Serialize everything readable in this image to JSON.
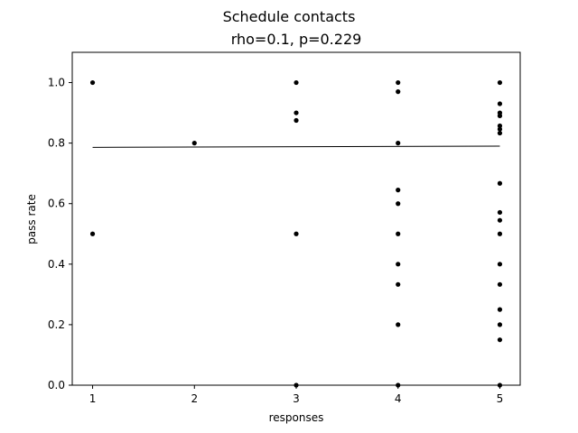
{
  "chart_data": {
    "type": "scatter",
    "title": "Schedule contacts",
    "subtitle": "rho=0.1, p=0.229",
    "xlabel": "responses",
    "ylabel": "pass rate",
    "xlim": [
      0.8,
      5.2
    ],
    "ylim": [
      0.0,
      1.1
    ],
    "x_ticks": [
      1,
      2,
      3,
      4,
      5
    ],
    "y_ticks": [
      0.0,
      0.2,
      0.4,
      0.6,
      0.8,
      1.0
    ],
    "y_tick_labels": [
      "0.0",
      "0.2",
      "0.4",
      "0.6",
      "0.8",
      "1.0"
    ],
    "grid": false,
    "point_color": "#000000",
    "points": [
      {
        "x": 1,
        "y": 1.0
      },
      {
        "x": 1,
        "y": 0.5
      },
      {
        "x": 2,
        "y": 0.8
      },
      {
        "x": 3,
        "y": 1.0
      },
      {
        "x": 3,
        "y": 0.9
      },
      {
        "x": 3,
        "y": 0.875
      },
      {
        "x": 3,
        "y": 0.5
      },
      {
        "x": 3,
        "y": 0.0
      },
      {
        "x": 4,
        "y": 1.0
      },
      {
        "x": 4,
        "y": 0.97
      },
      {
        "x": 4,
        "y": 0.8
      },
      {
        "x": 4,
        "y": 0.645
      },
      {
        "x": 4,
        "y": 0.6
      },
      {
        "x": 4,
        "y": 0.5
      },
      {
        "x": 4,
        "y": 0.4
      },
      {
        "x": 4,
        "y": 0.333
      },
      {
        "x": 4,
        "y": 0.2
      },
      {
        "x": 4,
        "y": 0.0
      },
      {
        "x": 5,
        "y": 1.0
      },
      {
        "x": 5,
        "y": 0.93
      },
      {
        "x": 5,
        "y": 0.9
      },
      {
        "x": 5,
        "y": 0.89
      },
      {
        "x": 5,
        "y": 0.857
      },
      {
        "x": 5,
        "y": 0.846
      },
      {
        "x": 5,
        "y": 0.833
      },
      {
        "x": 5,
        "y": 0.667
      },
      {
        "x": 5,
        "y": 0.571
      },
      {
        "x": 5,
        "y": 0.545
      },
      {
        "x": 5,
        "y": 0.5
      },
      {
        "x": 5,
        "y": 0.4
      },
      {
        "x": 5,
        "y": 0.333
      },
      {
        "x": 5,
        "y": 0.25
      },
      {
        "x": 5,
        "y": 0.2
      },
      {
        "x": 5,
        "y": 0.15
      },
      {
        "x": 5,
        "y": 0.0
      }
    ],
    "trend_line": {
      "x": [
        1,
        5
      ],
      "y": [
        0.786,
        0.79
      ],
      "color": "#000000"
    }
  }
}
